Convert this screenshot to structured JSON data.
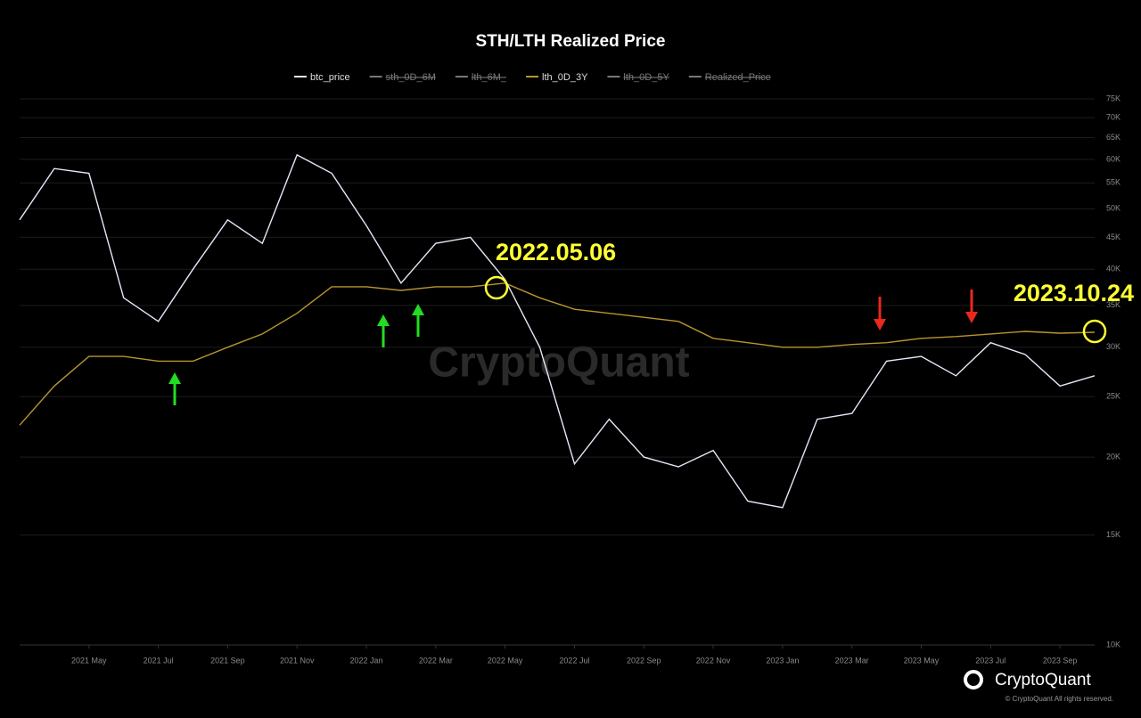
{
  "chart_data": {
    "type": "line",
    "title": "STH/LTH Realized Price",
    "x": [
      "2021-03",
      "2021-04",
      "2021-05",
      "2021-06",
      "2021-07",
      "2021-08",
      "2021-09",
      "2021-10",
      "2021-11",
      "2021-12",
      "2022-01",
      "2022-02",
      "2022-03",
      "2022-04",
      "2022-05",
      "2022-06",
      "2022-07",
      "2022-08",
      "2022-09",
      "2022-10",
      "2022-11",
      "2022-12",
      "2023-01",
      "2023-02",
      "2023-03",
      "2023-04",
      "2023-05",
      "2023-06",
      "2023-07",
      "2023-08",
      "2023-09",
      "2023-10"
    ],
    "series": [
      {
        "name": "btc_price",
        "color": "#e6e6fa",
        "values": [
          48000,
          58000,
          57000,
          36000,
          33000,
          40000,
          48000,
          44000,
          61000,
          57000,
          47000,
          38000,
          44000,
          45000,
          38500,
          30000,
          19500,
          23000,
          20000,
          19300,
          20500,
          17000,
          16600,
          23000,
          23500,
          28500,
          29000,
          27000,
          30500,
          29200,
          26000,
          27000
        ]
      },
      {
        "name": "lth_0D_3Y",
        "color": "#b8962e",
        "values": [
          22500,
          26000,
          29000,
          29000,
          28500,
          28500,
          30000,
          31500,
          34000,
          37500,
          37500,
          37000,
          37500,
          37500,
          38000,
          36000,
          34500,
          34000,
          33500,
          33000,
          31000,
          30500,
          30000,
          30000,
          30300,
          30500,
          31000,
          31200,
          31500,
          31800,
          31600,
          31700
        ]
      }
    ],
    "legend_order": [
      "btc_price",
      "sth_0D_6M",
      "lth_6M_",
      "lth_0D_3Y",
      "lth_0D_5Y",
      "Realized_Price"
    ],
    "hidden_series": [
      "sth_0D_6M",
      "lth_6M_",
      "lth_0D_5Y",
      "Realized_Price"
    ],
    "hidden_color": "#777777",
    "xlim": [
      "2021-03",
      "2023-10"
    ],
    "xticks": [
      {
        "value": "2021-05",
        "label": "2021 May"
      },
      {
        "value": "2021-07",
        "label": "2021 Jul"
      },
      {
        "value": "2021-09",
        "label": "2021 Sep"
      },
      {
        "value": "2021-11",
        "label": "2021 Nov"
      },
      {
        "value": "2022-01",
        "label": "2022 Jan"
      },
      {
        "value": "2022-03",
        "label": "2022 Mar"
      },
      {
        "value": "2022-05",
        "label": "2022 May"
      },
      {
        "value": "2022-07",
        "label": "2022 Jul"
      },
      {
        "value": "2022-09",
        "label": "2022 Sep"
      },
      {
        "value": "2022-11",
        "label": "2022 Nov"
      },
      {
        "value": "2023-01",
        "label": "2023 Jan"
      },
      {
        "value": "2023-03",
        "label": "2023 Mar"
      },
      {
        "value": "2023-05",
        "label": "2023 May"
      },
      {
        "value": "2023-07",
        "label": "2023 Jul"
      },
      {
        "value": "2023-09",
        "label": "2023 Sep"
      }
    ],
    "ylim": [
      10000,
      75000
    ],
    "log_y": true,
    "yticks": [
      {
        "value": 10000,
        "label": "10K"
      },
      {
        "value": 15000,
        "label": "15K"
      },
      {
        "value": 20000,
        "label": "20K"
      },
      {
        "value": 25000,
        "label": "25K"
      },
      {
        "value": 30000,
        "label": "30K"
      },
      {
        "value": 35000,
        "label": "35K"
      },
      {
        "value": 40000,
        "label": "40K"
      },
      {
        "value": 45000,
        "label": "45K"
      },
      {
        "value": 50000,
        "label": "50K"
      },
      {
        "value": 55000,
        "label": "55K"
      },
      {
        "value": 60000,
        "label": "60K"
      },
      {
        "value": 65000,
        "label": "65K"
      },
      {
        "value": 70000,
        "label": "70K"
      },
      {
        "value": 75000,
        "label": "75K"
      }
    ],
    "grid": true,
    "annotations": [
      "2022.05.06",
      "2023.10.24"
    ],
    "watermark": "CryptoQuant",
    "brand": "CryptoQuant",
    "copyright": "© CryptoQuant All rights reserved."
  }
}
